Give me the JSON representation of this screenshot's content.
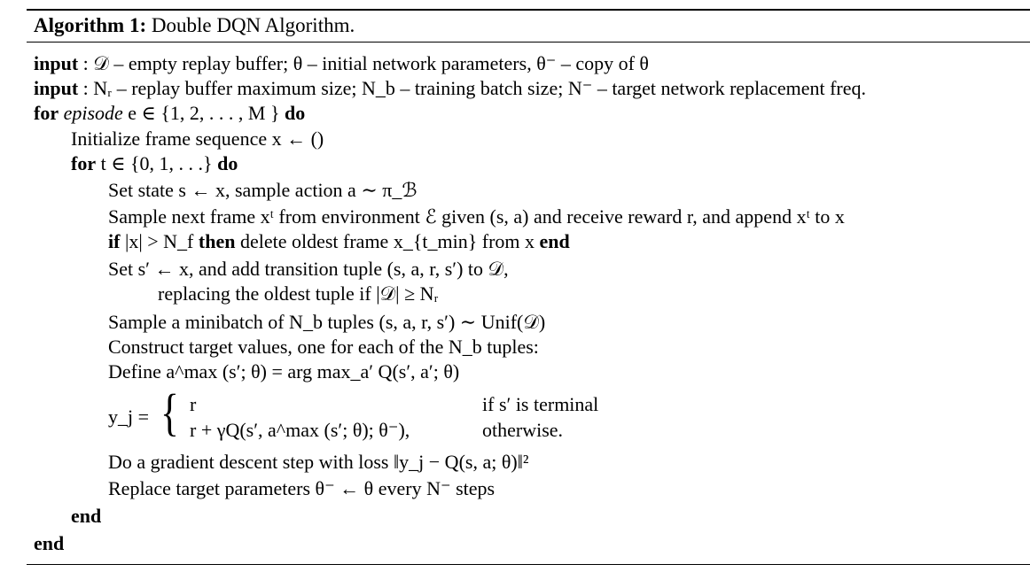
{
  "algorithm": {
    "label": "Algorithm 1:",
    "title": "Double DQN Algorithm."
  },
  "kw": {
    "input": "input",
    "for": "for",
    "do": "do",
    "if": "if",
    "then": "then",
    "end": "end",
    "episode": "episode"
  },
  "lines": {
    "input1": ": 𝒟 – empty replay buffer; θ – initial network parameters, θ⁻ – copy of θ",
    "input2": ": Nᵣ – replay buffer maximum size; N_b – training batch size; N⁻ – target network replacement freq.",
    "for_episode_cond": "e ∈ {1, 2, . . . , M }",
    "init_frames": "Initialize frame sequence x ← ()",
    "for_t_cond": "t ∈ {0, 1, . . .}",
    "set_state": "Set state s ← x, sample action a ∼ π_ℬ",
    "sample_frame": "Sample next frame xᵗ from environment ℰ given (s, a) and receive reward r, and append xᵗ to x",
    "if_cond": "|x| > N_f",
    "if_body": "delete oldest frame x_{t_min} from x",
    "set_transition": "Set s′ ← x, and add transition tuple (s, a, r, s′) to 𝒟,",
    "replace_oldest": "replacing the oldest tuple if |𝒟| ≥ Nᵣ",
    "sample_minibatch": "Sample a minibatch of N_b tuples (s, a, r, s′) ∼ Unif(𝒟)",
    "construct_targets": "Construct target values, one for each of the N_b tuples:",
    "define_amax": "Define a^max (s′; θ) = arg max_a′ Q(s′, a′; θ)",
    "y_lhs": "y_j =",
    "case1_expr": "r",
    "case1_cond": "if s′ is terminal",
    "case2_expr": "r + γQ(s′, a^max (s′; θ); θ⁻),",
    "case2_cond": "otherwise.",
    "gradient_step": "Do a gradient descent step with loss ‖y_j − Q(s, a; θ)‖²",
    "replace_params": "Replace target parameters θ⁻ ← θ every N⁻ steps"
  }
}
